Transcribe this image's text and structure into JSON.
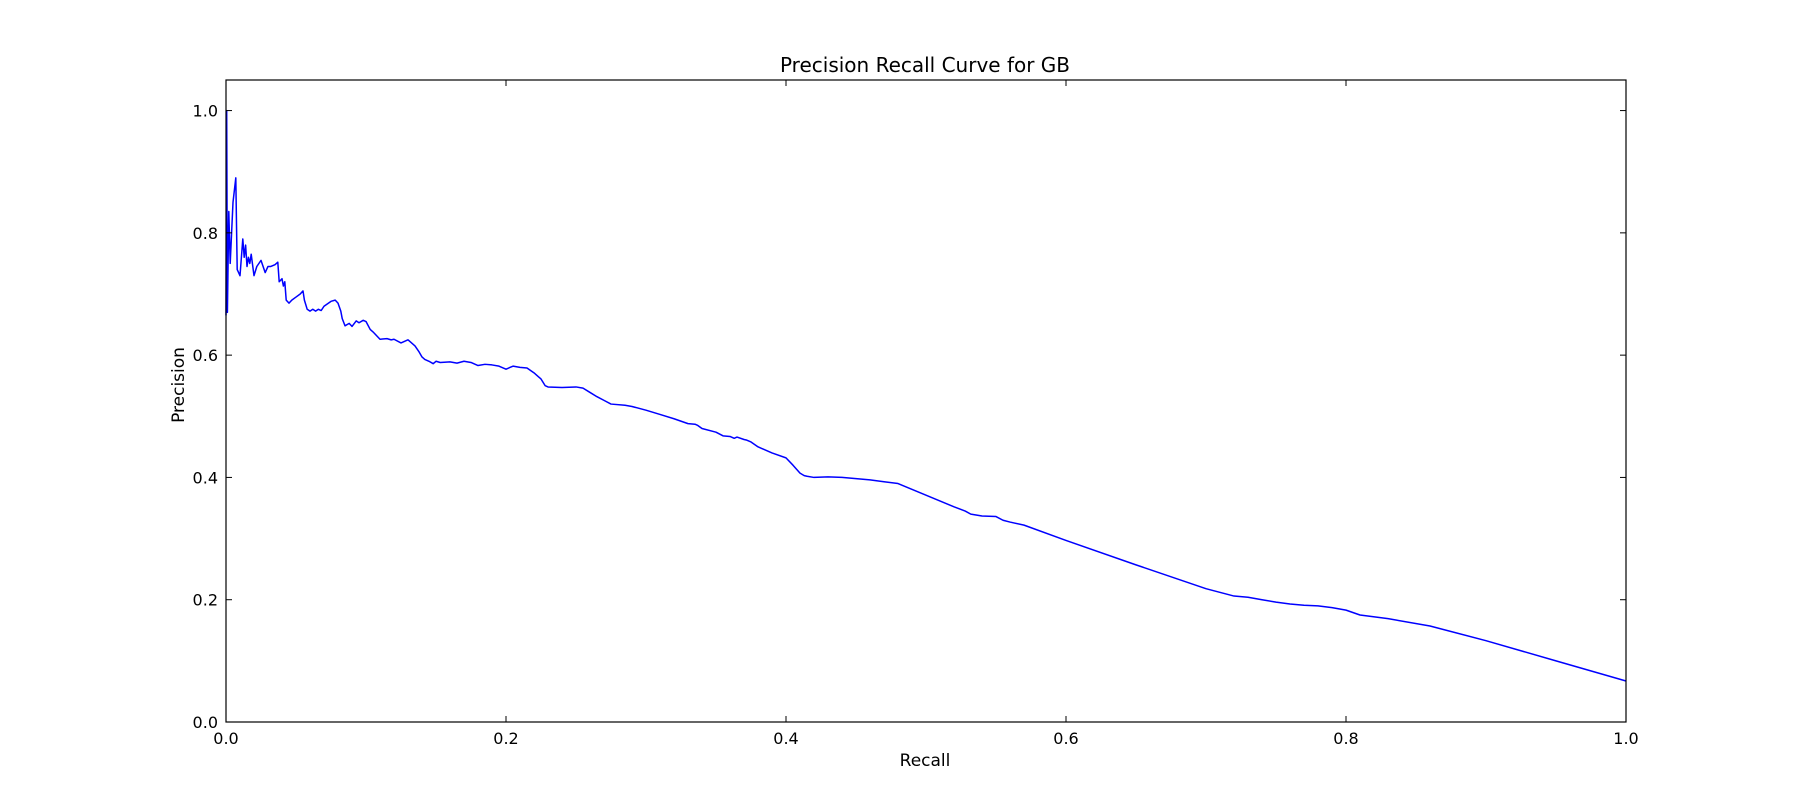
{
  "chart_data": {
    "type": "line",
    "title": "Precision Recall Curve for GB",
    "xlabel": "Recall",
    "ylabel": "Precision",
    "xlim": [
      0.0,
      1.0
    ],
    "ylim": [
      0.0,
      1.05
    ],
    "x_ticks": [
      0.0,
      0.2,
      0.4,
      0.6,
      0.8,
      1.0
    ],
    "y_ticks": [
      0.0,
      0.2,
      0.4,
      0.6,
      0.8,
      1.0
    ],
    "x_tick_labels": [
      "0.0",
      "0.2",
      "0.4",
      "0.6",
      "0.8",
      "1.0"
    ],
    "y_tick_labels": [
      "0.0",
      "0.2",
      "0.4",
      "0.6",
      "0.8",
      "1.0"
    ],
    "grid": false,
    "legend": "none",
    "line_color": "#0000ff",
    "series": [
      {
        "x": [
          0.0,
          0.0005,
          0.001,
          0.002,
          0.003,
          0.004,
          0.005,
          0.006,
          0.007,
          0.008,
          0.009,
          0.01,
          0.012,
          0.013,
          0.014,
          0.015,
          0.016,
          0.017,
          0.018,
          0.02,
          0.022,
          0.025,
          0.028,
          0.03,
          0.032,
          0.035,
          0.037,
          0.038,
          0.04,
          0.041,
          0.042,
          0.043,
          0.045,
          0.047,
          0.05,
          0.053,
          0.055,
          0.056,
          0.058,
          0.06,
          0.062,
          0.064,
          0.066,
          0.068,
          0.07,
          0.075,
          0.078,
          0.08,
          0.082,
          0.083,
          0.085,
          0.088,
          0.09,
          0.093,
          0.095,
          0.098,
          0.1,
          0.103,
          0.105,
          0.11,
          0.115,
          0.118,
          0.12,
          0.125,
          0.13,
          0.135,
          0.138,
          0.14,
          0.142,
          0.145,
          0.148,
          0.15,
          0.153,
          0.16,
          0.165,
          0.17,
          0.175,
          0.18,
          0.185,
          0.19,
          0.195,
          0.2,
          0.203,
          0.205,
          0.21,
          0.215,
          0.22,
          0.223,
          0.225,
          0.228,
          0.23,
          0.24,
          0.25,
          0.255,
          0.26,
          0.265,
          0.27,
          0.275,
          0.285,
          0.29,
          0.3,
          0.31,
          0.32,
          0.33,
          0.335,
          0.337,
          0.34,
          0.35,
          0.355,
          0.36,
          0.363,
          0.365,
          0.37,
          0.372,
          0.375,
          0.38,
          0.39,
          0.4,
          0.405,
          0.41,
          0.413,
          0.415,
          0.42,
          0.43,
          0.44,
          0.45,
          0.46,
          0.47,
          0.48,
          0.5,
          0.52,
          0.528,
          0.532,
          0.54,
          0.55,
          0.555,
          0.56,
          0.57,
          0.6,
          0.65,
          0.7,
          0.72,
          0.73,
          0.74,
          0.75,
          0.76,
          0.77,
          0.78,
          0.79,
          0.8,
          0.81,
          0.83,
          0.86,
          0.9,
          0.95,
          1.0
        ],
        "y": [
          0.665,
          1.0,
          0.67,
          0.835,
          0.75,
          0.8,
          0.85,
          0.87,
          0.89,
          0.74,
          0.735,
          0.73,
          0.79,
          0.76,
          0.78,
          0.745,
          0.76,
          0.75,
          0.765,
          0.73,
          0.745,
          0.755,
          0.735,
          0.745,
          0.745,
          0.748,
          0.752,
          0.72,
          0.725,
          0.713,
          0.72,
          0.69,
          0.685,
          0.69,
          0.695,
          0.7,
          0.705,
          0.69,
          0.675,
          0.672,
          0.675,
          0.672,
          0.675,
          0.673,
          0.68,
          0.688,
          0.69,
          0.685,
          0.672,
          0.66,
          0.648,
          0.652,
          0.647,
          0.656,
          0.653,
          0.657,
          0.655,
          0.642,
          0.638,
          0.626,
          0.627,
          0.625,
          0.626,
          0.62,
          0.625,
          0.615,
          0.605,
          0.597,
          0.593,
          0.59,
          0.586,
          0.59,
          0.588,
          0.589,
          0.587,
          0.59,
          0.588,
          0.583,
          0.585,
          0.584,
          0.582,
          0.577,
          0.58,
          0.582,
          0.58,
          0.579,
          0.571,
          0.565,
          0.561,
          0.55,
          0.548,
          0.547,
          0.548,
          0.546,
          0.539,
          0.532,
          0.526,
          0.52,
          0.518,
          0.516,
          0.51,
          0.503,
          0.496,
          0.488,
          0.487,
          0.485,
          0.48,
          0.474,
          0.468,
          0.467,
          0.464,
          0.466,
          0.462,
          0.461,
          0.458,
          0.45,
          0.44,
          0.432,
          0.42,
          0.407,
          0.403,
          0.402,
          0.4,
          0.401,
          0.4,
          0.398,
          0.396,
          0.393,
          0.39,
          0.371,
          0.352,
          0.345,
          0.34,
          0.337,
          0.336,
          0.33,
          0.327,
          0.322,
          0.297,
          0.257,
          0.218,
          0.206,
          0.204,
          0.2,
          0.196,
          0.193,
          0.191,
          0.19,
          0.187,
          0.183,
          0.175,
          0.169,
          0.157,
          0.133,
          0.1,
          0.067
        ]
      }
    ]
  }
}
